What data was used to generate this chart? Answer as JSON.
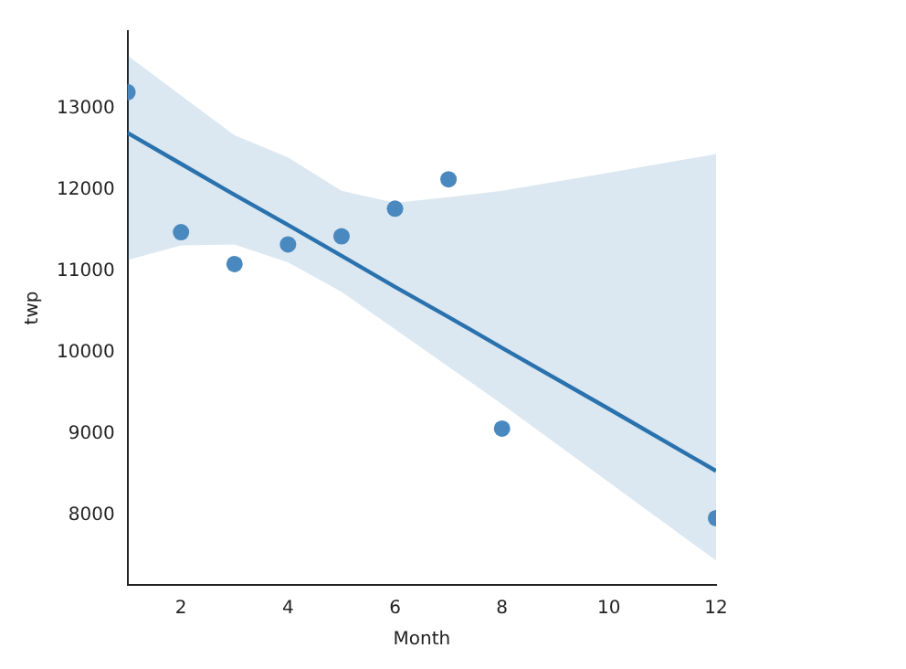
{
  "chart_data": {
    "type": "scatter",
    "xlabel": "Month",
    "ylabel": "twp",
    "xlim": [
      1,
      12
    ],
    "xticks": [
      2,
      4,
      6,
      8,
      10,
      12
    ],
    "ylim": [
      7150,
      13950
    ],
    "yticks": [
      8000,
      9000,
      10000,
      11000,
      12000,
      13000
    ],
    "grid": false,
    "legend": false,
    "marker": "circle",
    "series": [
      {
        "color": "#4a89bf",
        "x": [
          1,
          2,
          3,
          4,
          5,
          6,
          7,
          8,
          12
        ],
        "values": [
          13200,
          11480,
          11090,
          11330,
          11430,
          11770,
          12130,
          9070,
          7970
        ]
      },
      {
        "type": "line",
        "color": "#2a72ad",
        "marker": "none",
        "x": [
          1,
          2,
          3,
          4,
          5,
          6,
          7,
          8,
          10,
          12
        ],
        "values": [
          12700,
          12320,
          11940,
          11570,
          11190,
          10810,
          10440,
          10060,
          9310,
          8550
        ],
        "lower": [
          11140,
          11320,
          11330,
          11110,
          10750,
          10290,
          9830,
          9370,
          8410,
          7450
        ],
        "upper": [
          13650,
          13160,
          12670,
          12400,
          11990,
          11840,
          11910,
          11990,
          12210,
          12440
        ]
      }
    ]
  }
}
